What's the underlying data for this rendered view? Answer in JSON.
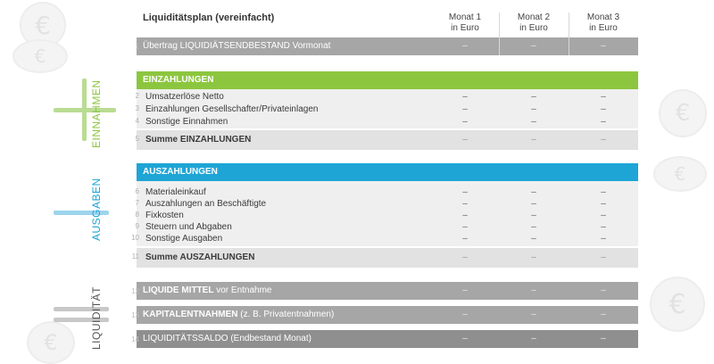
{
  "title": "Liquiditätsplan (vereinfacht)",
  "columns": [
    {
      "line1": "Monat 1",
      "line2": "in Euro"
    },
    {
      "line1": "Monat 2",
      "line2": "in Euro"
    },
    {
      "line1": "Monat 3",
      "line2": "in Euro"
    }
  ],
  "dash": "–",
  "carry_over": {
    "num": "1",
    "label": "Übertrag LIQUIDIÄTSENDBESTAND Vormonat"
  },
  "einzahlungen": {
    "side_label": "EINNAHMEN",
    "header": "EINZAHLUNGEN",
    "color": "#8cc63f",
    "items": [
      {
        "num": "2",
        "label": "Umsatzerlöse Netto"
      },
      {
        "num": "3",
        "label": "Einzahlungen Gesellschafter/Privateinlagen"
      },
      {
        "num": "4",
        "label": "Sonstige Einnahmen"
      }
    ],
    "sum": {
      "num": "5",
      "label": "Summe EINZAHLUNGEN"
    }
  },
  "auszahlungen": {
    "side_label": "AUSGABEN",
    "header": "AUSZAHLUNGEN",
    "color": "#1ea5d6",
    "items": [
      {
        "num": "6",
        "label": "Materialeinkauf"
      },
      {
        "num": "7",
        "label": "Auszahlungen an Beschäftigte"
      },
      {
        "num": "8",
        "label": "Fixkosten"
      },
      {
        "num": "9",
        "label": "Steuern und Abgaben"
      },
      {
        "num": "10",
        "label": "Sonstige Ausgaben"
      }
    ],
    "sum": {
      "num": "11",
      "label": "Summe AUSZAHLUNGEN"
    }
  },
  "liquiditaet": {
    "side_label": "LIQUIDITÄT",
    "row12": {
      "num": "12",
      "bold": "LIQUIDE MITTEL",
      "rest": " vor Entnahme"
    },
    "row13": {
      "num": "13",
      "bold": "KAPITALENTNAHMEN",
      "rest": " (z. B. Privatentnahmen)"
    },
    "row14": {
      "num": "14",
      "label": "LIQUIDITÄTSSALDO (Endbestand Monat)"
    }
  },
  "colors": {
    "green": "#8cc63f",
    "blue": "#1ea5d6",
    "gray_bar": "#a6a6a6",
    "band": "#efefef"
  }
}
